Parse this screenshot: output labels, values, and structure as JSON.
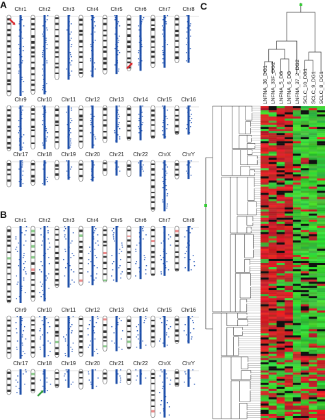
{
  "panels": [
    {
      "label": "A",
      "rows": [
        [
          "Chr1",
          "Chr2",
          "Chr3",
          "Chr4",
          "Chr5",
          "Chr6",
          "Chr7",
          "Chr8"
        ],
        [
          "Chr9",
          "Chr10",
          "Chr11",
          "Chr12",
          "Chr13",
          "Chr14",
          "Chr15",
          "Chr16"
        ],
        [
          "Chr17",
          "Chr18",
          "Chr19",
          "Chr20",
          "Chr21",
          "Chr22",
          "ChrX",
          "ChrY"
        ]
      ]
    },
    {
      "label": "B",
      "rows": [
        [
          "Chr1",
          "Chr2",
          "Chr3",
          "Chr4",
          "Chr5",
          "Chr6",
          "Chr7",
          "Chr8"
        ],
        [
          "Chr9",
          "Chr10",
          "Chr11",
          "Chr12",
          "Chr13",
          "Chr14",
          "Chr15",
          "Chr16"
        ],
        [
          "Chr17",
          "Chr18",
          "Chr19",
          "Chr20",
          "Chr21",
          "Chr22",
          "ChrX",
          "ChrY"
        ]
      ]
    }
  ],
  "panel_c": {
    "label": "C",
    "samples": [
      "LNFNA_36_DG1",
      "LNFNA_33F_DG2",
      "LNFNA_5_DG",
      "LNFNA_6_DG",
      "LNFNA_37_2_DG2",
      "SCLC_10_DG1",
      "SCLC_9_DG1",
      "SCLC_8_DG1"
    ]
  }
}
